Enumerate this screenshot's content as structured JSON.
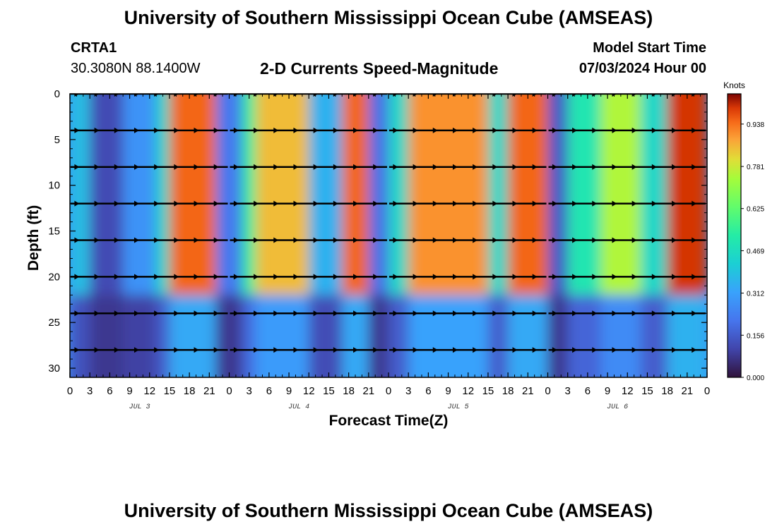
{
  "header": {
    "title": "University of Southern Mississippi Ocean Cube (AMSEAS)",
    "station_id": "CRTA1",
    "coordinates": "30.3080N  88.1400W",
    "subtitle": "2-D Currents Speed-Magnitude",
    "model_start_label": "Model Start Time",
    "model_start_value": "07/03/2024 Hour 00"
  },
  "footer": {
    "title": "University of Southern Mississippi Ocean Cube (AMSEAS)"
  },
  "chart_data": {
    "type": "heatmap",
    "title": "2-D Currents Speed-Magnitude",
    "xlabel": "Forecast Time(Z)",
    "ylabel": "Depth (ft)",
    "x_range_hours": [
      0,
      96
    ],
    "ylim": [
      0,
      31
    ],
    "y_inverted": true,
    "x_tick_labels": [
      "0",
      "3",
      "6",
      "9",
      "12",
      "15",
      "18",
      "21",
      "0",
      "3",
      "6",
      "9",
      "12",
      "15",
      "18",
      "21",
      "0",
      "3",
      "6",
      "9",
      "12",
      "15",
      "18",
      "21",
      "0",
      "3",
      "6",
      "9",
      "12",
      "15",
      "18",
      "21",
      "0"
    ],
    "y_ticks": [
      0,
      5,
      10,
      15,
      20,
      25,
      30
    ],
    "day_labels": [
      {
        "label": "JUL 3",
        "hour": 10.5
      },
      {
        "label": "JUL 4",
        "hour": 34.5
      },
      {
        "label": "JUL 5",
        "hour": 58.5
      },
      {
        "label": "JUL 6",
        "hour": 82.5
      }
    ],
    "colorbar": {
      "label": "Knots",
      "range": [
        0.0,
        1.05
      ],
      "tick_values": [
        0.0,
        0.156,
        0.312,
        0.469,
        0.625,
        0.781,
        0.938
      ],
      "tick_labels": [
        "0.000",
        "0.156",
        "0.312",
        "0.469",
        "0.625",
        "0.781",
        "0.938"
      ]
    },
    "speed_bands_knots": [
      {
        "start_hour": 0,
        "end_hour": 3,
        "speed": 0.38
      },
      {
        "start_hour": 3,
        "end_hour": 8,
        "speed": 0.12
      },
      {
        "start_hour": 8,
        "end_hour": 13,
        "speed": 0.28
      },
      {
        "start_hour": 13,
        "end_hour": 15,
        "speed": 0.45
      },
      {
        "start_hour": 15,
        "end_hour": 22,
        "speed": 0.95
      },
      {
        "start_hour": 22,
        "end_hour": 26,
        "speed": 0.22
      },
      {
        "start_hour": 26,
        "end_hour": 28,
        "speed": 0.55
      },
      {
        "start_hour": 28,
        "end_hour": 36,
        "speed": 0.85
      },
      {
        "start_hour": 36,
        "end_hour": 41,
        "speed": 0.35
      },
      {
        "start_hour": 41,
        "end_hour": 45,
        "speed": 0.95
      },
      {
        "start_hour": 45,
        "end_hour": 48,
        "speed": 0.2
      },
      {
        "start_hour": 48,
        "end_hour": 51,
        "speed": 0.45
      },
      {
        "start_hour": 51,
        "end_hour": 63,
        "speed": 0.9
      },
      {
        "start_hour": 63,
        "end_hour": 66,
        "speed": 0.45
      },
      {
        "start_hour": 66,
        "end_hour": 72,
        "speed": 0.95
      },
      {
        "start_hour": 72,
        "end_hour": 75,
        "speed": 0.15
      },
      {
        "start_hour": 75,
        "end_hour": 80,
        "speed": 0.5
      },
      {
        "start_hour": 80,
        "end_hour": 86,
        "speed": 0.75
      },
      {
        "start_hour": 86,
        "end_hour": 90,
        "speed": 0.45
      },
      {
        "start_hour": 90,
        "end_hour": 96,
        "speed": 1.0
      }
    ],
    "vector_depths_ft": [
      0,
      4,
      8,
      12,
      16,
      20,
      24,
      28
    ],
    "vector_segments_hours": [
      [
        0,
        24
      ],
      [
        24,
        48
      ],
      [
        48,
        72
      ],
      [
        72,
        96
      ]
    ]
  }
}
